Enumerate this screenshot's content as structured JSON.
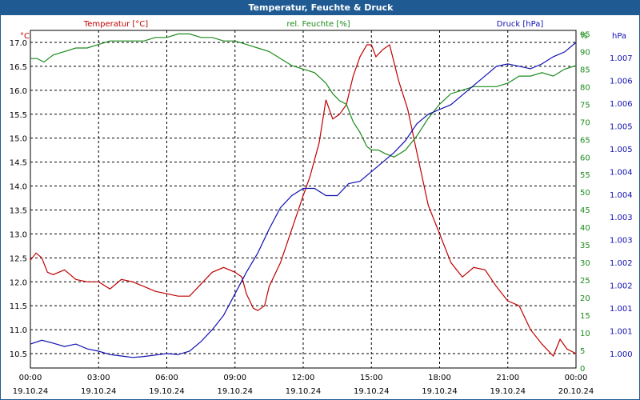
{
  "title": "Temperatur, Feuchte & Druck",
  "chart_data": {
    "type": "line",
    "title": "Temperatur, Feuchte & Druck",
    "x_tick_labels": [
      {
        "time": "00:00",
        "date": "19.10.24"
      },
      {
        "time": "03:00",
        "date": "19.10.24"
      },
      {
        "time": "06:00",
        "date": "19.10.24"
      },
      {
        "time": "09:00",
        "date": "19.10.24"
      },
      {
        "time": "12:00",
        "date": "19.10.24"
      },
      {
        "time": "15:00",
        "date": "19.10.24"
      },
      {
        "time": "18:00",
        "date": "19.10.24"
      },
      {
        "time": "21:00",
        "date": "19.10.24"
      },
      {
        "time": "00:00",
        "date": "20.10.24"
      }
    ],
    "x_range_hours": [
      0,
      24
    ],
    "grid": true,
    "axes": {
      "temperature": {
        "label": "Temperatur [°C]",
        "unit": "°C",
        "range": [
          10.2,
          17.25
        ],
        "ticks": [
          "10.5",
          "11.0",
          "11.5",
          "12.0",
          "12.5",
          "13.0",
          "13.5",
          "14.0",
          "14.5",
          "15.0",
          "15.5",
          "16.0",
          "16.5",
          "17.0"
        ],
        "color": "#c00000"
      },
      "humidity": {
        "label": "rel. Feuchte [%]",
        "unit": "%",
        "range": [
          0,
          96
        ],
        "ticks": [
          "0",
          "5",
          "10",
          "15",
          "20",
          "25",
          "30",
          "35",
          "40",
          "45",
          "50",
          "55",
          "60",
          "65",
          "70",
          "75",
          "80",
          "85",
          "90",
          "95"
        ],
        "color": "#1c8a1c"
      },
      "pressure": {
        "label": "Druck [hPa]",
        "unit": "hPa",
        "ticks": [
          "1.000",
          "1.001",
          "1.001",
          "1.002",
          "1.002",
          "1.003",
          "1.003",
          "1.004",
          "1.004",
          "1.005",
          "1.005",
          "1.006",
          "1.006",
          "1.007"
        ],
        "color": "#1010b0"
      }
    },
    "series": [
      {
        "name": "Temperatur [°C]",
        "axis": "temperature",
        "color": "#c00000",
        "x": [
          0,
          0.25,
          0.5,
          0.75,
          1,
          1.5,
          2,
          2.5,
          3,
          3.5,
          4,
          4.5,
          5,
          5.5,
          6,
          6.5,
          7,
          7.5,
          8,
          8.5,
          9,
          9.3,
          9.5,
          9.8,
          10,
          10.3,
          10.5,
          11,
          11.5,
          12,
          12.3,
          12.7,
          13,
          13.3,
          13.6,
          13.9,
          14.2,
          14.5,
          14.8,
          15,
          15.2,
          15.5,
          15.8,
          16.2,
          16.6,
          17,
          17.5,
          18,
          18.5,
          19,
          19.5,
          20,
          20.5,
          21,
          21.5,
          22,
          22.5,
          23,
          23.3,
          23.6,
          24
        ],
        "values": [
          12.45,
          12.6,
          12.5,
          12.2,
          12.15,
          12.25,
          12.05,
          12.0,
          12.0,
          11.85,
          12.05,
          12.0,
          11.9,
          11.8,
          11.75,
          11.7,
          11.7,
          11.95,
          12.2,
          12.3,
          12.2,
          12.1,
          11.75,
          11.45,
          11.4,
          11.5,
          11.9,
          12.4,
          13.1,
          13.8,
          14.2,
          14.9,
          15.8,
          15.4,
          15.5,
          15.7,
          16.3,
          16.7,
          16.95,
          16.95,
          16.7,
          16.85,
          16.95,
          16.2,
          15.6,
          14.7,
          13.6,
          13.0,
          12.4,
          12.1,
          12.3,
          12.25,
          11.9,
          11.6,
          11.5,
          11.0,
          10.7,
          10.45,
          10.8,
          10.6,
          10.5
        ]
      },
      {
        "name": "rel. Feuchte [%]",
        "axis": "humidity",
        "color": "#1c8a1c",
        "x": [
          0,
          0.3,
          0.6,
          1,
          1.5,
          2,
          2.5,
          3,
          3.5,
          4,
          4.5,
          5,
          5.5,
          6,
          6.5,
          7,
          7.5,
          8,
          8.5,
          9,
          9.5,
          10,
          10.5,
          11,
          11.5,
          12,
          12.5,
          13,
          13.3,
          13.6,
          13.9,
          14.2,
          14.5,
          14.8,
          15,
          15.3,
          15.6,
          16,
          16.5,
          17,
          17.5,
          18,
          18.5,
          19,
          19.5,
          20,
          20.5,
          21,
          21.5,
          22,
          22.5,
          23,
          23.5,
          24
        ],
        "values": [
          88,
          88,
          87,
          89,
          90,
          91,
          91,
          92,
          93,
          93,
          93,
          93,
          94,
          94,
          95,
          95,
          94,
          94,
          93,
          93,
          92,
          91,
          90,
          88,
          86,
          85,
          84,
          81,
          78,
          76,
          75,
          70,
          67,
          63,
          62,
          62,
          61,
          60,
          62,
          66,
          71,
          75,
          78,
          79,
          80,
          80,
          80,
          81,
          83,
          83,
          84,
          83,
          85,
          86
        ]
      },
      {
        "name": "Druck [hPa]",
        "axis": "pressure",
        "color": "#1010b0",
        "x": [
          0,
          0.5,
          1,
          1.5,
          2,
          2.5,
          3,
          3.5,
          4,
          4.5,
          5,
          5.5,
          6,
          6.5,
          7,
          7.5,
          8,
          8.5,
          9,
          9.5,
          10,
          10.5,
          11,
          11.5,
          12,
          12.5,
          13,
          13.5,
          14,
          14.5,
          15,
          15.5,
          16,
          16.5,
          17,
          17.5,
          18,
          18.5,
          19,
          19.5,
          20,
          20.5,
          21,
          21.5,
          22,
          22.5,
          23,
          23.5,
          24
        ],
        "values": [
          10.7,
          10.78,
          10.72,
          10.65,
          10.7,
          10.6,
          10.55,
          10.48,
          10.45,
          10.42,
          10.44,
          10.47,
          10.5,
          10.48,
          10.55,
          10.75,
          11.0,
          11.3,
          11.75,
          12.2,
          12.6,
          13.1,
          13.55,
          13.8,
          13.95,
          13.95,
          13.8,
          13.8,
          14.05,
          14.1,
          14.3,
          14.5,
          14.7,
          14.95,
          15.3,
          15.5,
          15.6,
          15.7,
          15.9,
          16.1,
          16.3,
          16.5,
          16.55,
          16.5,
          16.45,
          16.55,
          16.7,
          16.8,
          17.0
        ]
      }
    ]
  }
}
